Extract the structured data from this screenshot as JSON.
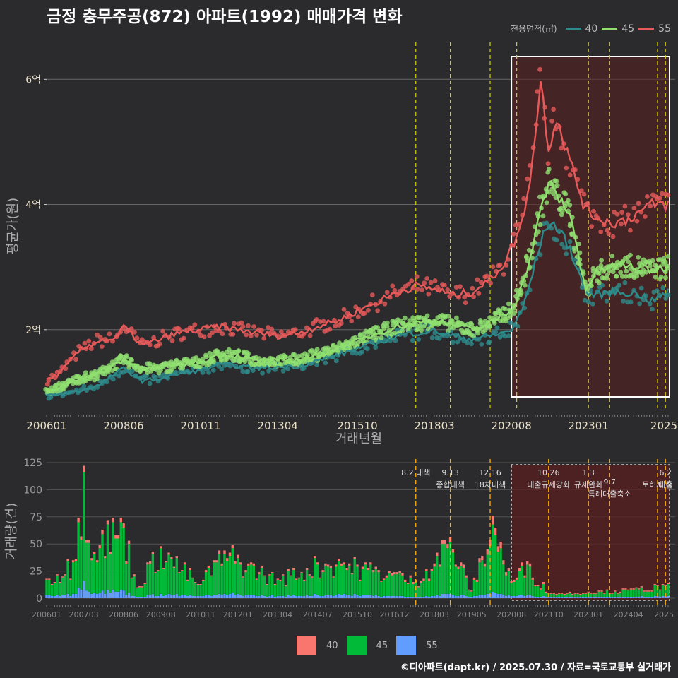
{
  "title": "금정 충무주공(872) 아파트(1992) 매매가격 변화",
  "legend_top": {
    "title": "전용면적(㎡)",
    "items": [
      {
        "label": "40",
        "color": "#2e8b8b"
      },
      {
        "label": "45",
        "color": "#90e070"
      },
      {
        "label": "55",
        "color": "#e85a5a"
      }
    ]
  },
  "legend_bottom": {
    "items": [
      {
        "label": "40",
        "color": "#f8766d"
      },
      {
        "label": "45",
        "color": "#00ba38"
      },
      {
        "label": "55",
        "color": "#619cff"
      }
    ]
  },
  "footer": "©디아파트(dapt.kr) / 2025.07.30 / 자료=국토교통부 실거래가",
  "chart_data": [
    {
      "type": "line",
      "xlabel": "거래년월",
      "ylabel": "평균가(원)",
      "x_range": [
        "2006-01",
        "2025-07"
      ],
      "y_range_eok": [
        0.7,
        6.5
      ],
      "yticks": [
        {
          "value": 2,
          "label": "2억"
        },
        {
          "value": 4,
          "label": "4억"
        },
        {
          "value": 6,
          "label": "6억"
        }
      ],
      "xticks": [
        "200601",
        "200806",
        "201011",
        "201304",
        "201510",
        "201803",
        "202008",
        "202301",
        "2025"
      ],
      "highlight_box": {
        "from": "2020-08",
        "to": "2025-07"
      },
      "policy_lines": [
        "2017-08",
        "2018-09",
        "2019-12",
        "2020-10",
        "2023-01",
        "2023-09",
        "2025-03",
        "2025-06"
      ],
      "series": [
        {
          "name": "40",
          "color": "#2e8b8b",
          "points": [
            [
              "2006-01",
              0.95
            ],
            [
              "2006-06",
              0.97
            ],
            [
              "2007-01",
              1.02
            ],
            [
              "2007-08",
              1.1
            ],
            [
              "2008-03",
              1.3
            ],
            [
              "2008-06",
              1.38
            ],
            [
              "2009-01",
              1.18
            ],
            [
              "2009-08",
              1.22
            ],
            [
              "2010-03",
              1.3
            ],
            [
              "2010-11",
              1.35
            ],
            [
              "2011-06",
              1.45
            ],
            [
              "2012-01",
              1.42
            ],
            [
              "2012-08",
              1.38
            ],
            [
              "2013-04",
              1.4
            ],
            [
              "2013-12",
              1.42
            ],
            [
              "2014-07",
              1.5
            ],
            [
              "2015-03",
              1.6
            ],
            [
              "2015-10",
              1.7
            ],
            [
              "2016-06",
              1.8
            ],
            [
              "2017-01",
              1.9
            ],
            [
              "2017-08",
              1.95
            ],
            [
              "2018-03",
              1.98
            ],
            [
              "2018-10",
              1.9
            ],
            [
              "2019-05",
              1.85
            ],
            [
              "2019-12",
              1.9
            ],
            [
              "2020-05",
              1.95
            ],
            [
              "2020-08",
              2.0
            ],
            [
              "2020-12",
              2.3
            ],
            [
              "2021-04",
              2.9
            ],
            [
              "2021-07",
              3.4
            ],
            [
              "2021-10",
              3.7
            ],
            [
              "2022-01",
              3.65
            ],
            [
              "2022-06",
              3.3
            ],
            [
              "2022-12",
              2.6
            ],
            [
              "2023-04",
              2.55
            ],
            [
              "2023-09",
              2.6
            ],
            [
              "2024-03",
              2.6
            ],
            [
              "2024-09",
              2.55
            ],
            [
              "2025-01",
              2.45
            ],
            [
              "2025-07",
              2.6
            ]
          ]
        },
        {
          "name": "45",
          "color": "#90e070",
          "points": [
            [
              "2006-01",
              1.0
            ],
            [
              "2006-06",
              1.08
            ],
            [
              "2007-01",
              1.22
            ],
            [
              "2007-08",
              1.28
            ],
            [
              "2008-03",
              1.45
            ],
            [
              "2008-06",
              1.52
            ],
            [
              "2009-01",
              1.38
            ],
            [
              "2009-08",
              1.38
            ],
            [
              "2010-03",
              1.45
            ],
            [
              "2010-11",
              1.48
            ],
            [
              "2011-06",
              1.6
            ],
            [
              "2012-01",
              1.58
            ],
            [
              "2012-08",
              1.5
            ],
            [
              "2013-04",
              1.5
            ],
            [
              "2013-12",
              1.52
            ],
            [
              "2014-07",
              1.6
            ],
            [
              "2015-03",
              1.7
            ],
            [
              "2015-10",
              1.82
            ],
            [
              "2016-06",
              1.95
            ],
            [
              "2017-01",
              2.05
            ],
            [
              "2017-08",
              2.1
            ],
            [
              "2018-03",
              2.15
            ],
            [
              "2018-10",
              2.08
            ],
            [
              "2019-05",
              2.0
            ],
            [
              "2019-12",
              2.1
            ],
            [
              "2020-05",
              2.25
            ],
            [
              "2020-08",
              2.3
            ],
            [
              "2020-12",
              2.7
            ],
            [
              "2021-04",
              3.3
            ],
            [
              "2021-07",
              3.9
            ],
            [
              "2021-10",
              4.35
            ],
            [
              "2022-01",
              4.15
            ],
            [
              "2022-06",
              3.85
            ],
            [
              "2022-12",
              2.65
            ],
            [
              "2023-04",
              2.9
            ],
            [
              "2023-09",
              3.0
            ],
            [
              "2024-03",
              3.02
            ],
            [
              "2024-09",
              3.0
            ],
            [
              "2025-01",
              2.95
            ],
            [
              "2025-07",
              3.0
            ]
          ]
        },
        {
          "name": "55",
          "color": "#e85a5a",
          "points": [
            [
              "2006-01",
              1.2
            ],
            [
              "2006-06",
              1.3
            ],
            [
              "2007-01",
              1.65
            ],
            [
              "2007-08",
              1.82
            ],
            [
              "2008-03",
              1.85
            ],
            [
              "2008-06",
              2.05
            ],
            [
              "2009-01",
              1.75
            ],
            [
              "2009-08",
              1.85
            ],
            [
              "2010-03",
              1.95
            ],
            [
              "2010-11",
              2.0
            ],
            [
              "2011-06",
              2.05
            ],
            [
              "2012-01",
              2.0
            ],
            [
              "2012-08",
              1.95
            ],
            [
              "2013-04",
              1.9
            ],
            [
              "2013-12",
              1.95
            ],
            [
              "2014-07",
              2.05
            ],
            [
              "2015-03",
              2.15
            ],
            [
              "2015-10",
              2.3
            ],
            [
              "2016-06",
              2.45
            ],
            [
              "2017-01",
              2.6
            ],
            [
              "2017-08",
              2.7
            ],
            [
              "2018-03",
              2.65
            ],
            [
              "2018-10",
              2.55
            ],
            [
              "2019-05",
              2.6
            ],
            [
              "2019-12",
              2.8
            ],
            [
              "2020-05",
              3.05
            ],
            [
              "2020-08",
              3.3
            ],
            [
              "2020-12",
              3.7
            ],
            [
              "2021-04",
              4.7
            ],
            [
              "2021-07",
              6.0
            ],
            [
              "2021-10",
              4.9
            ],
            [
              "2022-01",
              5.4
            ],
            [
              "2022-06",
              4.7
            ],
            [
              "2022-12",
              3.9
            ],
            [
              "2023-04",
              3.8
            ],
            [
              "2023-09",
              3.7
            ],
            [
              "2024-03",
              3.75
            ],
            [
              "2024-09",
              3.9
            ],
            [
              "2025-01",
              4.0
            ],
            [
              "2025-07",
              4.0
            ]
          ]
        }
      ]
    },
    {
      "type": "bar",
      "ylabel": "거래량(건)",
      "y_range": [
        0,
        125
      ],
      "yticks": [
        0,
        25,
        50,
        75,
        100,
        125
      ],
      "xticks": [
        "200601",
        "200703",
        "200806",
        "200908",
        "201011",
        "201201",
        "201304",
        "201407",
        "201510",
        "201612",
        "201803",
        "201905",
        "202008",
        "202110",
        "202301",
        "202404",
        "2025"
      ],
      "highlight_box": {
        "from": "2020-08",
        "to": "2025-07"
      },
      "annotations": [
        {
          "date": "2017-08",
          "lines": [
            "8.2 대책"
          ]
        },
        {
          "date": "2018-09",
          "lines": [
            "9.13",
            "종합대책"
          ]
        },
        {
          "date": "2019-12",
          "lines": [
            "12.16",
            "18차대책"
          ]
        },
        {
          "date": "2021-10",
          "lines": [
            "10.26",
            "대출규제강화"
          ]
        },
        {
          "date": "2023-01",
          "lines": [
            "1.3",
            "규제완화"
          ]
        },
        {
          "date": "2023-09",
          "lines": [
            "9.7",
            "특례대출축소"
          ]
        },
        {
          "date": "2025-03",
          "lines": [
            "",
            "토허제 해"
          ]
        },
        {
          "date": "2025-06",
          "lines": [
            "6.2",
            "대출"
          ]
        }
      ],
      "monthly_sample": [
        {
          "month": "2006-01",
          "a40": 1,
          "a45": 14,
          "a55": 3
        },
        {
          "month": "2006-12",
          "a40": 2,
          "a45": 30,
          "a55": 4
        },
        {
          "month": "2007-01",
          "a40": 4,
          "a45": 60,
          "a55": 10
        },
        {
          "month": "2007-03",
          "a40": 6,
          "a45": 100,
          "a55": 16
        },
        {
          "month": "2007-05",
          "a40": 3,
          "a45": 45,
          "a55": 6
        },
        {
          "month": "2008-06",
          "a40": 4,
          "a45": 58,
          "a55": 7
        },
        {
          "month": "2008-11",
          "a40": 1,
          "a45": 8,
          "a55": 1
        },
        {
          "month": "2009-08",
          "a40": 2,
          "a45": 42,
          "a55": 4
        },
        {
          "month": "2010-11",
          "a40": 1,
          "a45": 10,
          "a55": 2
        },
        {
          "month": "2011-04",
          "a40": 2,
          "a45": 30,
          "a55": 3
        },
        {
          "month": "2011-10",
          "a40": 3,
          "a45": 35,
          "a55": 4
        },
        {
          "month": "2013-04",
          "a40": 1,
          "a45": 15,
          "a55": 2
        },
        {
          "month": "2014-07",
          "a40": 2,
          "a45": 28,
          "a55": 3
        },
        {
          "month": "2015-03",
          "a40": 2,
          "a45": 30,
          "a55": 4
        },
        {
          "month": "2015-10",
          "a40": 2,
          "a45": 26,
          "a55": 3
        },
        {
          "month": "2016-12",
          "a40": 2,
          "a45": 20,
          "a55": 2
        },
        {
          "month": "2017-08",
          "a40": 2,
          "a45": 14,
          "a55": 1
        },
        {
          "month": "2018-09",
          "a40": 4,
          "a45": 48,
          "a55": 4
        },
        {
          "month": "2019-05",
          "a40": 1,
          "a45": 5,
          "a55": 1
        },
        {
          "month": "2020-01",
          "a40": 8,
          "a45": 62,
          "a55": 6
        },
        {
          "month": "2020-08",
          "a40": 2,
          "a45": 12,
          "a55": 2
        },
        {
          "month": "2021-02",
          "a40": 3,
          "a45": 28,
          "a55": 3
        },
        {
          "month": "2021-10",
          "a40": 1,
          "a45": 3,
          "a55": 1
        },
        {
          "month": "2023-01",
          "a40": 1,
          "a45": 4,
          "a55": 1
        },
        {
          "month": "2024-04",
          "a40": 1,
          "a45": 6,
          "a55": 1
        },
        {
          "month": "2025-06",
          "a40": 1,
          "a45": 9,
          "a55": 2
        }
      ]
    }
  ]
}
